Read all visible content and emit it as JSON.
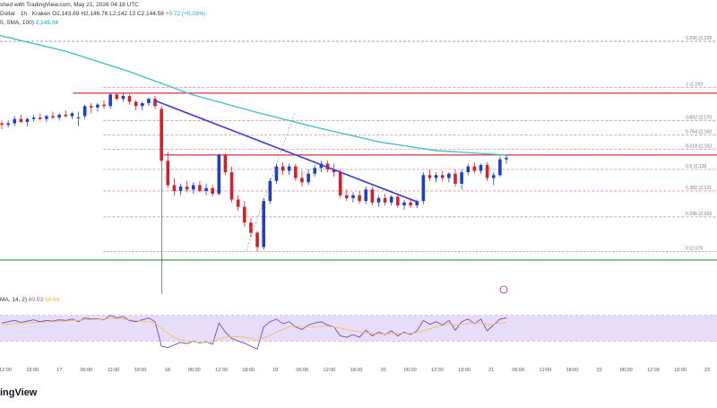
{
  "header": {
    "line1": "shed with TradingView.com, May 21, 2026 04:18 UTC",
    "line2_prefix": "Dollar · 1h · Kraken  O2,143.69  H2,146.76  L2,142.13  C2,144.58",
    "line2_change": "+0.72 (+0.03%)",
    "line3_prefix": "0, SMA, 100)",
    "line3_value": "2,145.04"
  },
  "indicator_legend": {
    "label": "MA, 14, 2)",
    "rsi_value": "60.53",
    "ma_value": "56.69"
  },
  "brand": {
    "text": "ingView"
  },
  "colors": {
    "up": "#26a69a",
    "candle_up": "#1e3fc4",
    "candle_down": "#d3202a",
    "sma": "#4cc1c9",
    "trend": "#3a3fd0",
    "resistance": "#d9454f",
    "fib": "#d98c94",
    "fib_top": "#b97bd6",
    "support": "#3aa04a",
    "rsi": "#7e57c2",
    "rsi_ma": "#f0c060",
    "rsi_band": "#e8ddf8"
  },
  "chart_data": {
    "type": "candlestick",
    "interval": "1h",
    "price_range": [
      2068,
      2235
    ],
    "x_range": [
      -0.5,
      79.5
    ],
    "time_labels": [
      {
        "i": 0,
        "label": "12:00"
      },
      {
        "i": 6,
        "label": "18:00"
      },
      {
        "i": 12,
        "label": "17"
      },
      {
        "i": 18,
        "label": "06:00"
      },
      {
        "i": 24,
        "label": "12:00"
      },
      {
        "i": 30,
        "label": "18:00"
      },
      {
        "i": 36,
        "label": "18"
      },
      {
        "i": 42,
        "label": "06:00"
      },
      {
        "i": 48,
        "label": "12:00"
      },
      {
        "i": 54,
        "label": "18:00"
      },
      {
        "i": 60,
        "label": "19"
      },
      {
        "i": 66,
        "label": "06:00"
      },
      {
        "i": 72,
        "label": "12:00"
      },
      {
        "i": 78,
        "label": "18:00"
      },
      {
        "i": 84,
        "label": "20"
      },
      {
        "i": 90,
        "label": "06:00"
      },
      {
        "i": 96,
        "label": "12:00"
      },
      {
        "i": 102,
        "label": "18:00"
      },
      {
        "i": 108,
        "label": "21"
      },
      {
        "i": 114,
        "label": "06:00"
      },
      {
        "i": 120,
        "label": "12:00"
      },
      {
        "i": 126,
        "label": "18:00"
      },
      {
        "i": 132,
        "label": "22"
      },
      {
        "i": 138,
        "label": "06:00"
      },
      {
        "i": 144,
        "label": "12:00"
      },
      {
        "i": 150,
        "label": "18:00"
      },
      {
        "i": 156,
        "label": "23"
      }
    ],
    "fib_levels": [
      {
        "ratio": "1.236",
        "price": "2,225",
        "value": 2225
      },
      {
        "ratio": "1",
        "price": "2,193",
        "value": 2193
      },
      {
        "ratio": "0.832",
        "price": "2,170",
        "value": 2170
      },
      {
        "ratio": "0.764",
        "price": "2,160",
        "value": 2160
      },
      {
        "ratio": "0.618",
        "price": "2,150",
        "value": 2150
      },
      {
        "ratio": "0.5",
        "price": "2,136",
        "value": 2136
      },
      {
        "ratio": "0.382",
        "price": "2,121",
        "value": 2121
      },
      {
        "ratio": "0.236",
        "price": "2,103",
        "value": 2103
      },
      {
        "ratio": "0",
        "price": "2,079",
        "value": 2079
      }
    ],
    "horizontal_levels": [
      {
        "kind": "resistance",
        "value": 2189,
        "from_i": 11
      },
      {
        "kind": "resistance",
        "value": 2146,
        "from_i": 26
      },
      {
        "kind": "support",
        "value": 2073,
        "from_i": -1
      }
    ],
    "trend_line": {
      "from": {
        "i": 52,
        "value": 2185
      },
      "to": {
        "i": 140,
        "value": 2117
      }
    },
    "fib_anchor": {
      "from": {
        "i": 52,
        "value": 2181
      },
      "to": {
        "i": 84,
        "value": 2079
      }
    },
    "candles": [
      {
        "o": 2168,
        "h": 2170,
        "l": 2164,
        "c": 2167
      },
      {
        "o": 2167,
        "h": 2170,
        "l": 2165,
        "c": 2168
      },
      {
        "o": 2168,
        "h": 2173,
        "l": 2166,
        "c": 2171
      },
      {
        "o": 2171,
        "h": 2174,
        "l": 2168,
        "c": 2169
      },
      {
        "o": 2169,
        "h": 2172,
        "l": 2166,
        "c": 2171
      },
      {
        "o": 2171,
        "h": 2174,
        "l": 2169,
        "c": 2172
      },
      {
        "o": 2172,
        "h": 2175,
        "l": 2170,
        "c": 2171
      },
      {
        "o": 2171,
        "h": 2174,
        "l": 2169,
        "c": 2173
      },
      {
        "o": 2173,
        "h": 2176,
        "l": 2171,
        "c": 2172
      },
      {
        "o": 2172,
        "h": 2175,
        "l": 2170,
        "c": 2174
      },
      {
        "o": 2174,
        "h": 2177,
        "l": 2172,
        "c": 2173
      },
      {
        "o": 2173,
        "h": 2176,
        "l": 2171,
        "c": 2175
      },
      {
        "o": 2172,
        "h": 2176,
        "l": 2166,
        "c": 2172
      },
      {
        "o": 2173,
        "h": 2181,
        "l": 2171,
        "c": 2180
      },
      {
        "o": 2180,
        "h": 2182,
        "l": 2175,
        "c": 2179
      },
      {
        "o": 2179,
        "h": 2182,
        "l": 2176,
        "c": 2181
      },
      {
        "o": 2181,
        "h": 2184,
        "l": 2178,
        "c": 2180
      },
      {
        "o": 2180,
        "h": 2189,
        "l": 2178,
        "c": 2188
      },
      {
        "o": 2188,
        "h": 2189,
        "l": 2184,
        "c": 2185
      },
      {
        "o": 2185,
        "h": 2189,
        "l": 2183,
        "c": 2187
      },
      {
        "o": 2187,
        "h": 2188,
        "l": 2181,
        "c": 2183
      },
      {
        "o": 2183,
        "h": 2184,
        "l": 2177,
        "c": 2180
      },
      {
        "o": 2180,
        "h": 2183,
        "l": 2177,
        "c": 2182
      },
      {
        "o": 2182,
        "h": 2186,
        "l": 2180,
        "c": 2185
      },
      {
        "o": 2185,
        "h": 2187,
        "l": 2178,
        "c": 2180
      },
      {
        "o": 2178,
        "h": 2180,
        "l": 2140,
        "c": 2142
      },
      {
        "o": 2142,
        "h": 2148,
        "l": 2123,
        "c": 2125
      },
      {
        "o": 2125,
        "h": 2130,
        "l": 2118,
        "c": 2121
      },
      {
        "o": 2121,
        "h": 2126,
        "l": 2118,
        "c": 2124
      },
      {
        "o": 2124,
        "h": 2128,
        "l": 2120,
        "c": 2122
      },
      {
        "o": 2122,
        "h": 2127,
        "l": 2119,
        "c": 2125
      },
      {
        "o": 2125,
        "h": 2128,
        "l": 2120,
        "c": 2121
      },
      {
        "o": 2121,
        "h": 2126,
        "l": 2118,
        "c": 2123
      },
      {
        "o": 2123,
        "h": 2125,
        "l": 2117,
        "c": 2119
      },
      {
        "o": 2119,
        "h": 2147,
        "l": 2118,
        "c": 2146
      },
      {
        "o": 2146,
        "h": 2147,
        "l": 2132,
        "c": 2134
      },
      {
        "o": 2134,
        "h": 2138,
        "l": 2113,
        "c": 2115
      },
      {
        "o": 2115,
        "h": 2118,
        "l": 2107,
        "c": 2110
      },
      {
        "o": 2110,
        "h": 2114,
        "l": 2096,
        "c": 2099
      },
      {
        "o": 2099,
        "h": 2102,
        "l": 2089,
        "c": 2092
      },
      {
        "o": 2092,
        "h": 2093,
        "l": 2079,
        "c": 2082
      },
      {
        "o": 2082,
        "h": 2116,
        "l": 2080,
        "c": 2114
      },
      {
        "o": 2114,
        "h": 2130,
        "l": 2112,
        "c": 2128
      },
      {
        "o": 2128,
        "h": 2140,
        "l": 2126,
        "c": 2138
      },
      {
        "o": 2138,
        "h": 2141,
        "l": 2132,
        "c": 2135
      },
      {
        "o": 2135,
        "h": 2140,
        "l": 2132,
        "c": 2138
      },
      {
        "o": 2138,
        "h": 2140,
        "l": 2128,
        "c": 2130
      },
      {
        "o": 2130,
        "h": 2135,
        "l": 2124,
        "c": 2127
      },
      {
        "o": 2127,
        "h": 2136,
        "l": 2125,
        "c": 2133
      },
      {
        "o": 2133,
        "h": 2139,
        "l": 2131,
        "c": 2137
      },
      {
        "o": 2137,
        "h": 2142,
        "l": 2134,
        "c": 2140
      },
      {
        "o": 2140,
        "h": 2142,
        "l": 2134,
        "c": 2136
      },
      {
        "o": 2136,
        "h": 2140,
        "l": 2131,
        "c": 2134
      },
      {
        "o": 2134,
        "h": 2136,
        "l": 2116,
        "c": 2118
      },
      {
        "o": 2118,
        "h": 2122,
        "l": 2114,
        "c": 2116
      },
      {
        "o": 2116,
        "h": 2120,
        "l": 2113,
        "c": 2118
      },
      {
        "o": 2118,
        "h": 2121,
        "l": 2112,
        "c": 2114
      },
      {
        "o": 2114,
        "h": 2124,
        "l": 2112,
        "c": 2122
      },
      {
        "o": 2122,
        "h": 2124,
        "l": 2111,
        "c": 2113
      },
      {
        "o": 2113,
        "h": 2118,
        "l": 2110,
        "c": 2116
      },
      {
        "o": 2116,
        "h": 2119,
        "l": 2111,
        "c": 2113
      },
      {
        "o": 2113,
        "h": 2118,
        "l": 2111,
        "c": 2117
      },
      {
        "o": 2117,
        "h": 2119,
        "l": 2109,
        "c": 2111
      },
      {
        "o": 2111,
        "h": 2115,
        "l": 2108,
        "c": 2113
      },
      {
        "o": 2113,
        "h": 2116,
        "l": 2109,
        "c": 2111
      },
      {
        "o": 2111,
        "h": 2115,
        "l": 2109,
        "c": 2114
      },
      {
        "o": 2114,
        "h": 2134,
        "l": 2112,
        "c": 2132
      },
      {
        "o": 2132,
        "h": 2136,
        "l": 2128,
        "c": 2130
      },
      {
        "o": 2130,
        "h": 2134,
        "l": 2127,
        "c": 2132
      },
      {
        "o": 2132,
        "h": 2135,
        "l": 2128,
        "c": 2130
      },
      {
        "o": 2130,
        "h": 2134,
        "l": 2127,
        "c": 2133
      },
      {
        "o": 2133,
        "h": 2136,
        "l": 2124,
        "c": 2126
      },
      {
        "o": 2126,
        "h": 2136,
        "l": 2122,
        "c": 2134
      },
      {
        "o": 2134,
        "h": 2140,
        "l": 2132,
        "c": 2138
      },
      {
        "o": 2138,
        "h": 2141,
        "l": 2133,
        "c": 2135
      },
      {
        "o": 2135,
        "h": 2140,
        "l": 2133,
        "c": 2139
      },
      {
        "o": 2139,
        "h": 2141,
        "l": 2128,
        "c": 2130
      },
      {
        "o": 2130,
        "h": 2134,
        "l": 2125,
        "c": 2132
      },
      {
        "o": 2132,
        "h": 2145,
        "l": 2131,
        "c": 2143
      },
      {
        "o": 2143,
        "h": 2146,
        "l": 2140,
        "c": 2144
      }
    ],
    "sma_100": [
      {
        "i": -1,
        "v": 2229
      },
      {
        "i": 20,
        "v": 2218
      },
      {
        "i": 40,
        "v": 2204
      },
      {
        "i": 60,
        "v": 2188
      },
      {
        "i": 80,
        "v": 2176
      },
      {
        "i": 100,
        "v": 2165
      },
      {
        "i": 120,
        "v": 2155
      },
      {
        "i": 138,
        "v": 2149
      },
      {
        "i": 160,
        "v": 2146
      }
    ],
    "rsi_range": [
      0,
      100
    ],
    "rsi_band": [
      30,
      70
    ],
    "rsi": [
      58,
      60,
      62,
      59,
      61,
      63,
      60,
      62,
      61,
      63,
      62,
      64,
      60,
      66,
      64,
      65,
      63,
      70,
      66,
      68,
      62,
      60,
      63,
      66,
      60,
      22,
      20,
      24,
      28,
      26,
      30,
      27,
      29,
      25,
      58,
      44,
      34,
      30,
      27,
      22,
      18,
      52,
      60,
      64,
      57,
      60,
      52,
      48,
      55,
      58,
      60,
      55,
      52,
      38,
      36,
      40,
      36,
      47,
      38,
      44,
      40,
      46,
      38,
      44,
      40,
      46,
      62,
      56,
      60,
      55,
      62,
      47,
      60,
      64,
      57,
      64,
      46,
      55,
      64,
      66
    ],
    "rsi_ma": [
      56,
      56,
      57,
      58,
      58,
      59,
      59,
      60,
      60,
      61,
      61,
      62,
      62,
      63,
      63,
      64,
      64,
      65,
      65,
      64,
      63,
      62,
      61,
      60,
      58,
      50,
      42,
      36,
      32,
      30,
      29,
      28,
      28,
      28,
      33,
      36,
      37,
      37,
      36,
      34,
      31,
      35,
      39,
      44,
      48,
      52,
      53,
      53,
      52,
      52,
      53,
      53,
      52,
      50,
      48,
      46,
      44,
      43,
      42,
      41,
      41,
      42,
      42,
      42,
      42,
      43,
      46,
      49,
      52,
      54,
      56,
      55,
      56,
      57,
      58,
      58,
      56,
      56,
      58,
      59
    ]
  }
}
